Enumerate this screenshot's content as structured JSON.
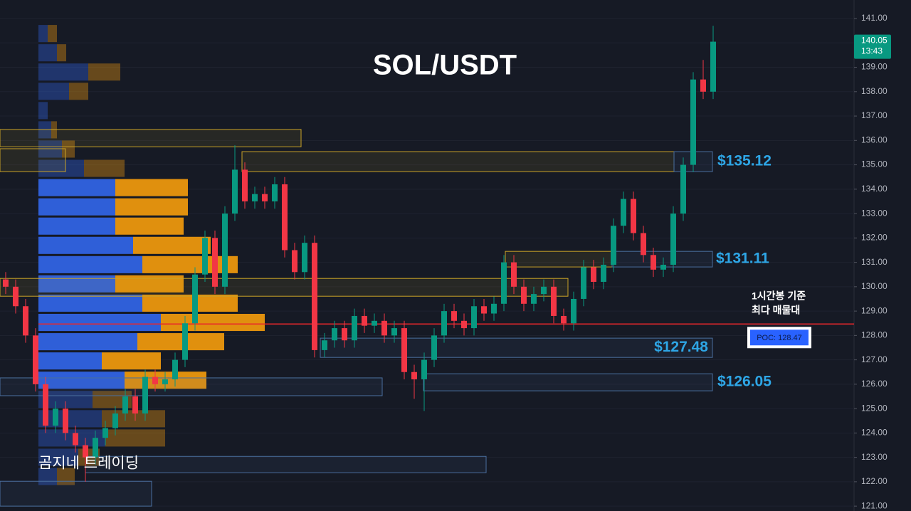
{
  "chart_data": {
    "type": "candlestick",
    "title": "SOL/USDT",
    "watermark": "곰지네 트레이딩",
    "ylim": [
      120.8,
      141.76
    ],
    "yticks": [
      {
        "value": 121,
        "label": "121.00"
      },
      {
        "value": 122,
        "label": "122.00"
      },
      {
        "value": 123,
        "label": "123.00"
      },
      {
        "value": 124,
        "label": "124.00"
      },
      {
        "value": 125,
        "label": "125.00"
      },
      {
        "value": 126,
        "label": "126.00"
      },
      {
        "value": 127,
        "label": "127.00"
      },
      {
        "value": 128,
        "label": "128.00"
      },
      {
        "value": 129,
        "label": "129.00"
      },
      {
        "value": 130,
        "label": "130.00"
      },
      {
        "value": 131,
        "label": "131.00"
      },
      {
        "value": 132,
        "label": "132.00"
      },
      {
        "value": 133,
        "label": "133.00"
      },
      {
        "value": 134,
        "label": "134.00"
      },
      {
        "value": 135,
        "label": "135.00"
      },
      {
        "value": 136,
        "label": "136.00"
      },
      {
        "value": 137,
        "label": "137.00"
      },
      {
        "value": 138,
        "label": "138.00"
      },
      {
        "value": 139,
        "label": "139.00"
      },
      {
        "value": 140,
        "label": "140.00"
      },
      {
        "value": 141,
        "label": "141.00"
      }
    ],
    "grid": true,
    "up_color": "#089981",
    "down_color": "#f23645",
    "open": [
      130.3,
      130.0,
      129.2,
      128.0,
      126.0,
      124.3,
      125.0,
      124.0,
      123.5,
      123.0,
      123.8,
      124.2,
      124.8,
      125.5,
      124.8,
      126.3,
      126.0,
      126.2,
      127.0,
      128.5,
      130.5,
      132.0,
      130.0,
      133.0,
      134.8,
      133.5,
      133.8,
      133.5,
      134.2,
      131.5,
      130.6,
      131.8,
      127.4,
      127.8,
      128.3,
      127.8,
      128.8,
      128.4,
      128.6,
      128.0,
      128.3,
      126.5,
      126.2,
      127.0,
      128.0,
      129.0,
      128.6,
      128.3,
      129.2,
      128.9,
      129.3,
      131.0,
      130.0,
      129.3,
      129.7,
      130.0,
      128.8,
      128.5,
      129.5,
      130.8,
      130.2,
      130.9,
      132.5,
      133.6,
      132.2,
      131.3,
      130.7,
      130.9,
      133.0,
      135.0,
      138.5,
      138.0
    ],
    "high": [
      130.6,
      130.3,
      129.5,
      128.3,
      126.3,
      125.3,
      125.3,
      124.3,
      123.8,
      124.1,
      124.5,
      125.1,
      125.8,
      125.8,
      126.6,
      126.6,
      126.5,
      127.3,
      128.8,
      130.8,
      132.3,
      132.3,
      133.3,
      135.8,
      135.1,
      134.1,
      134.1,
      134.5,
      134.5,
      131.8,
      132.1,
      132.1,
      128.1,
      128.6,
      128.6,
      129.1,
      129.1,
      128.9,
      128.9,
      128.6,
      128.6,
      126.8,
      127.3,
      128.3,
      129.3,
      129.3,
      128.9,
      129.5,
      129.5,
      129.6,
      131.3,
      131.3,
      130.3,
      130.0,
      130.3,
      130.3,
      129.1,
      129.8,
      131.1,
      131.1,
      131.2,
      132.8,
      133.9,
      133.9,
      132.5,
      131.6,
      131.2,
      133.3,
      135.3,
      138.8,
      139.3,
      140.7
    ],
    "low": [
      129.7,
      128.9,
      127.7,
      125.7,
      124.0,
      124.0,
      123.7,
      123.2,
      122.0,
      122.7,
      123.5,
      123.9,
      124.5,
      124.5,
      124.5,
      125.7,
      125.7,
      125.9,
      126.7,
      128.2,
      130.2,
      129.7,
      129.7,
      132.7,
      133.2,
      133.2,
      133.2,
      133.2,
      131.2,
      130.3,
      130.3,
      127.1,
      127.1,
      127.5,
      127.5,
      127.5,
      128.1,
      128.1,
      127.7,
      127.7,
      126.2,
      125.4,
      124.9,
      126.7,
      127.7,
      128.3,
      128.0,
      128.0,
      128.6,
      128.6,
      129.0,
      129.7,
      129.0,
      129.0,
      129.4,
      128.5,
      128.2,
      128.2,
      129.2,
      129.9,
      129.9,
      130.6,
      132.2,
      131.9,
      131.0,
      130.4,
      130.4,
      130.6,
      132.7,
      134.7,
      137.7,
      137.7
    ],
    "close": [
      130.0,
      129.2,
      128.0,
      126.0,
      124.3,
      125.0,
      124.0,
      123.5,
      123.0,
      123.8,
      124.2,
      124.8,
      125.5,
      124.8,
      126.3,
      126.0,
      126.2,
      127.0,
      128.5,
      130.5,
      132.0,
      130.0,
      133.0,
      134.8,
      133.5,
      133.8,
      133.5,
      134.2,
      131.5,
      130.6,
      131.8,
      127.4,
      127.8,
      128.3,
      127.8,
      128.8,
      128.4,
      128.6,
      128.0,
      128.3,
      126.5,
      126.2,
      127.0,
      128.0,
      129.0,
      128.6,
      128.3,
      129.2,
      128.9,
      129.3,
      131.0,
      130.0,
      129.3,
      129.7,
      130.0,
      128.8,
      128.5,
      129.5,
      130.8,
      130.2,
      130.9,
      132.5,
      133.6,
      132.2,
      131.3,
      130.7,
      130.9,
      133.0,
      135.0,
      138.5,
      138.0,
      140.05
    ],
    "last_price": 140.05,
    "last_time": "13:43",
    "volume_profile": {
      "bins": [
        121.82,
        122.61,
        123.4,
        124.19,
        124.98,
        125.77,
        126.56,
        127.35,
        128.14,
        128.93,
        129.72,
        130.51,
        131.3,
        132.09,
        132.88,
        133.67,
        134.46,
        135.25,
        136.04,
        136.83,
        137.62,
        138.41,
        139.2,
        139.99,
        140.78
      ],
      "buy": [
        26,
        56,
        94,
        89,
        76,
        121,
        89,
        139,
        172,
        146,
        108,
        146,
        133,
        108,
        108,
        108,
        64,
        33,
        18,
        13,
        43,
        70,
        26,
        13
      ],
      "sell": [
        25,
        30,
        84,
        89,
        55,
        115,
        83,
        122,
        146,
        134,
        96,
        134,
        109,
        96,
        102,
        102,
        57,
        18,
        8,
        0,
        27,
        45,
        13,
        13
      ],
      "buy_color": "#2f5fd8",
      "sell_color": "#e0900e",
      "value_area": [
        125.77,
        134.46
      ]
    },
    "poc": {
      "value": 128.47,
      "label": "POC: 128.47"
    },
    "poc_note": [
      "1시간봉 기준",
      "최다 매물대"
    ],
    "zones": [
      {
        "low": 135.74,
        "high": 136.45,
        "color": "#c9a227"
      },
      {
        "low": 134.72,
        "high": 135.66,
        "color": "#c9a227"
      },
      {
        "low": 134.72,
        "high": 135.54,
        "color": "#c9a227"
      },
      {
        "low": 134.72,
        "high": 135.54,
        "color": "#4a6f9e",
        "label": "$135.12"
      },
      {
        "low": 130.81,
        "high": 131.45,
        "color": "#c9a227"
      },
      {
        "low": 130.81,
        "high": 131.45,
        "color": "#4a6f9e",
        "label": "$131.11"
      },
      {
        "low": 129.61,
        "high": 130.34,
        "color": "#c9a227"
      },
      {
        "low": 127.1,
        "high": 127.89,
        "color": "#4a6f9e",
        "label": "$127.48"
      },
      {
        "low": 125.73,
        "high": 126.43,
        "color": "#4a6f9e",
        "label": "$126.05"
      },
      {
        "low": 125.53,
        "high": 126.26,
        "color": "#4a6f9e"
      },
      {
        "low": 122.37,
        "high": 123.04,
        "color": "#4a6f9e"
      },
      {
        "low": 121.0,
        "high": 122.02,
        "color": "#4a6f9e"
      }
    ]
  }
}
